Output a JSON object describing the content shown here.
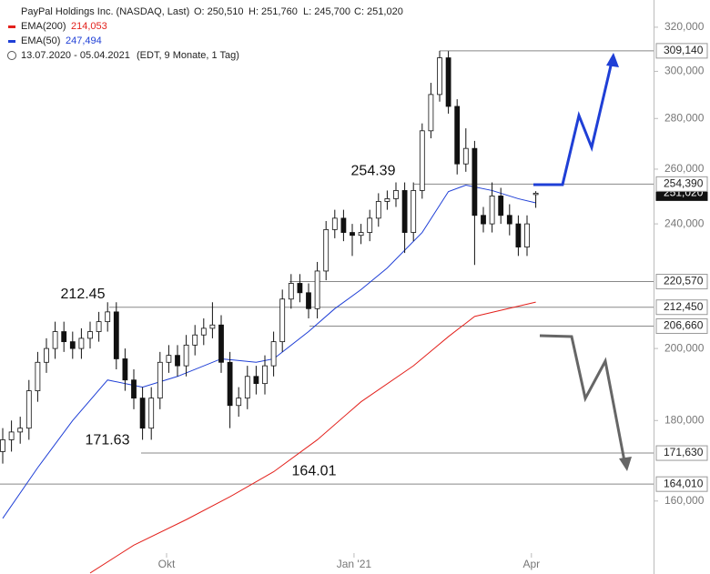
{
  "header": {
    "name": "PayPal Holdings Inc. (NASDAQ, Last)",
    "ohlc": [
      "O: 250,510",
      "H: 251,760",
      "L: 245,700",
      "C: 251,020"
    ],
    "period": "13.07.2020 - 05.04.2021",
    "period_note": "(EDT, 9 Monate, 1 Tag)"
  },
  "chart_data": {
    "type": "candlestick",
    "open": [
      172,
      175,
      177,
      178,
      188,
      196,
      200,
      205,
      202,
      200,
      203,
      205,
      208,
      211,
      197,
      191,
      186,
      178,
      186,
      196,
      198,
      195,
      201,
      204,
      206,
      207,
      196,
      184,
      186,
      192,
      190,
      195,
      202,
      215,
      220,
      217,
      212,
      224,
      238,
      242,
      237,
      236,
      237,
      242,
      248,
      249,
      252,
      237,
      252,
      275,
      290,
      306,
      285,
      262,
      268,
      243,
      240,
      250,
      243,
      240,
      232,
      250.51
    ],
    "high": [
      178,
      180,
      181,
      191,
      199,
      203,
      208,
      208,
      205,
      206,
      208,
      211,
      214,
      214,
      200,
      194,
      189,
      189,
      199,
      201,
      201,
      204,
      207,
      209,
      214,
      210,
      199,
      189,
      195,
      195,
      198,
      205,
      218,
      223,
      223,
      220,
      227,
      241,
      245,
      245,
      240,
      240,
      245,
      251,
      252,
      255,
      255,
      255,
      278,
      295,
      309.14,
      309,
      288,
      276,
      271,
      246,
      255,
      253,
      247,
      243,
      243,
      251.76
    ],
    "low": [
      169,
      172,
      174,
      175,
      185,
      193,
      197,
      199,
      197,
      197,
      200,
      202,
      205,
      194,
      188,
      183,
      175,
      175,
      183,
      193,
      192,
      192,
      198,
      201,
      203,
      193,
      178,
      181,
      183,
      187,
      187,
      192,
      199,
      212,
      214,
      209,
      209,
      221,
      235,
      234,
      229,
      233,
      234,
      239,
      245,
      246,
      230,
      234,
      249,
      272,
      287,
      282,
      258,
      259,
      226,
      237,
      237,
      240,
      236,
      229,
      229,
      245.7
    ],
    "close": [
      175,
      177,
      178,
      188,
      196,
      200,
      205,
      202,
      200,
      203,
      205,
      208,
      211,
      197,
      191,
      186,
      178,
      186,
      196,
      198,
      195,
      201,
      204,
      206,
      207,
      196,
      184,
      186,
      192,
      190,
      195,
      202,
      215,
      220,
      217,
      212,
      224,
      238,
      242,
      237,
      236,
      237,
      242,
      248,
      249,
      252,
      237,
      252,
      275,
      290,
      306,
      285,
      262,
      268,
      243,
      240,
      250,
      243,
      240,
      232,
      240,
      251.02
    ],
    "series": [
      {
        "name": "EMA(200)",
        "legend_value": "214,053",
        "color": "#e3211c",
        "x": [
          10,
          15,
          21,
          26,
          31,
          36,
          41,
          47,
          51,
          54,
          61
        ],
        "values": [
          144,
          150,
          155.7,
          161,
          167,
          175,
          185,
          195,
          203.5,
          209.6,
          214.053
        ]
      },
      {
        "name": "EMA(50)",
        "legend_value": "247,494",
        "color": "#1f3fd6",
        "x": [
          0,
          4,
          8,
          12,
          16,
          20,
          25,
          29,
          31,
          35,
          38,
          41,
          44,
          48,
          51,
          53,
          56,
          59,
          61
        ],
        "values": [
          156,
          168,
          180,
          191,
          189,
          192,
          197,
          196,
          197,
          205,
          212,
          218,
          225,
          237,
          251.6,
          254,
          252,
          249,
          247.494
        ]
      }
    ],
    "log_scale": true,
    "ylim": [
      143.8,
      333
    ],
    "yticks": [
      {
        "value": 160,
        "label": "160,000"
      },
      {
        "value": 180,
        "label": "180,000"
      },
      {
        "value": 200,
        "label": "200,000"
      },
      {
        "value": 240,
        "label": "240,000"
      },
      {
        "value": 260,
        "label": "260,000"
      },
      {
        "value": 280,
        "label": "280,000"
      },
      {
        "value": 300,
        "label": "300,000"
      },
      {
        "value": 320,
        "label": "320,000"
      }
    ],
    "xticks": [
      {
        "value": 18.75,
        "label": "Okt"
      },
      {
        "value": 40.2,
        "label": "Jan '21"
      },
      {
        "value": 60.5,
        "label": "Apr"
      }
    ],
    "last_price": {
      "value": 251.02,
      "label": "251,020"
    },
    "levels": [
      {
        "value": 309.14,
        "label": "309,140"
      },
      {
        "value": 254.39,
        "label": "254,390"
      },
      {
        "value": 220.57,
        "label": "220,570"
      },
      {
        "value": 212.45,
        "label": "212,450"
      },
      {
        "value": 206.66,
        "label": "206,660"
      },
      {
        "value": 171.63,
        "label": "171,630"
      },
      {
        "value": 164.01,
        "label": "164,010"
      }
    ],
    "annotations": [
      254.39,
      212.45,
      171.63,
      164.01
    ]
  }
}
